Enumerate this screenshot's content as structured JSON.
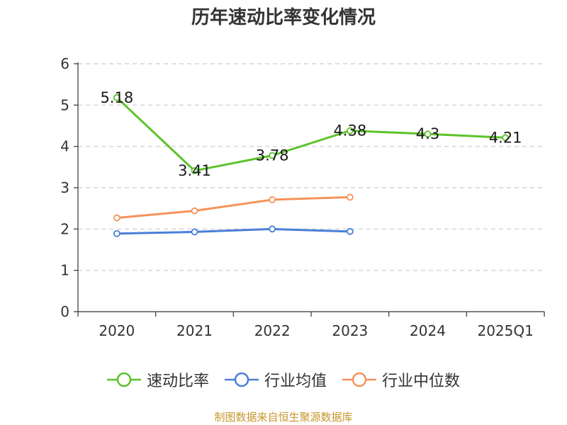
{
  "chart_data": {
    "type": "line",
    "title": "历年速动比率变化情况",
    "categories": [
      "2020",
      "2021",
      "2022",
      "2023",
      "2024",
      "2025Q1"
    ],
    "ylim": [
      0,
      6
    ],
    "yticks": [
      0,
      1,
      2,
      3,
      4,
      5,
      6
    ],
    "grid": true,
    "legend_position": "bottom",
    "series": [
      {
        "name": "速动比率",
        "color": "#5cc32a",
        "values": [
          5.18,
          3.41,
          3.78,
          4.38,
          4.3,
          4.21
        ],
        "value_labels": [
          "5.18",
          "3.41",
          "3.78",
          "4.38",
          "4.3",
          "4.21"
        ],
        "show_labels": true
      },
      {
        "name": "行业均值",
        "color": "#4a7fd8",
        "values": [
          1.89,
          1.93,
          2.0,
          1.94,
          null,
          null
        ],
        "show_labels": false
      },
      {
        "name": "行业中位数",
        "color": "#f5935a",
        "values": [
          2.27,
          2.44,
          2.71,
          2.77,
          null,
          null
        ],
        "show_labels": false
      }
    ]
  },
  "source_note": "制图数据来自恒生聚源数据库"
}
